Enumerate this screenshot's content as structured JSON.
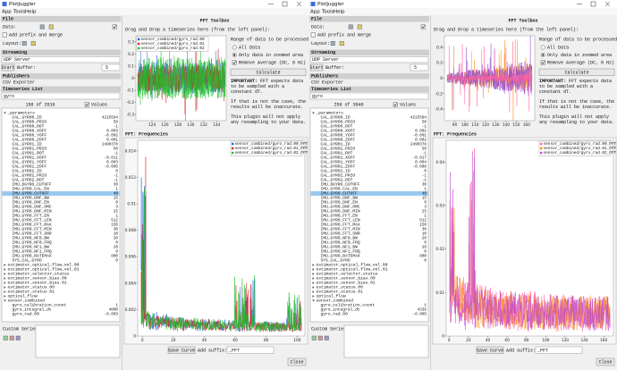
{
  "windows": [
    {
      "title": "PlotJuggler",
      "menu": [
        "App",
        "Tools",
        "Help"
      ],
      "left_panel": {
        "file_header": "File",
        "data_label": "Data:",
        "prefix_checkbox": {
          "label": "Add prefix and merge",
          "checked": false
        },
        "layout_label": "Layout:",
        "streaming_header": "Streaming",
        "streaming_source": "UDP Server",
        "start_button": "Start",
        "buffer_label": "Buffer:",
        "buffer_value": "5",
        "publishers_header": "Publishers",
        "publisher": "CSV Exporter",
        "timeseries_header": "Timeseries List",
        "search": "gyro",
        "count": "158 of 2016",
        "values_checkbox": {
          "label": "Values",
          "checked": true
        },
        "tree": [
          {
            "label": "_parameters",
            "expanded": true,
            "children": [
              {
                "label": "CAL_GYRO0_ID",
                "value": "4215594"
              },
              {
                "label": "CAL_GYRO0_PRIO",
                "value": "50"
              },
              {
                "label": "CAL_GYRO0_ROT",
                "value": "-1"
              },
              {
                "label": "CAL_GYRO0_XOFF",
                "value": "0.003"
              },
              {
                "label": "CAL_GYRO0_YOFF",
                "value": "-0.002"
              },
              {
                "label": "CAL_GYRO0_ZOFF",
                "value": "0.001"
              },
              {
                "label": "CAL_GYRO1_ID",
                "value": "2490378"
              },
              {
                "label": "CAL_GYRO1_PRIO",
                "value": "50"
              },
              {
                "label": "CAL_GYRO1_ROT",
                "value": "-1"
              },
              {
                "label": "CAL_GYRO1_XOFF",
                "value": "-0.011"
              },
              {
                "label": "CAL_GYRO1_YOFF",
                "value": "0.003"
              },
              {
                "label": "CAL_GYRO1_ZOFF",
                "value": "-0.005"
              },
              {
                "label": "CAL_GYRO2_ID",
                "value": "0"
              },
              {
                "label": "CAL_GYRO2_PRIO",
                "value": "-1"
              },
              {
                "label": "CAL_GYRO2_ROT",
                "value": "-1"
              },
              {
                "label": "IMU_DGYRO_CUTOFF",
                "value": "30"
              },
              {
                "label": "IMU_GYRO_CAL_EN",
                "value": "1"
              },
              {
                "label": "IMU_GYRO_CUTOFF",
                "value": "40",
                "selected": true
              },
              {
                "label": "IMU_GYRO_DNF_BW",
                "value": "15"
              },
              {
                "label": "IMU_GYRO_DNF_EN",
                "value": "0"
              },
              {
                "label": "IMU_GYRO_DNF_HMC",
                "value": "3"
              },
              {
                "label": "IMU_GYRO_DNF_MIN",
                "value": "25"
              },
              {
                "label": "IMU_GYRO_FFT_EN",
                "value": "1"
              },
              {
                "label": "IMU_GYRO_FFT_LEN",
                "value": "512"
              },
              {
                "label": "IMU_GYRO_FFT_MAX",
                "value": "150"
              },
              {
                "label": "IMU_GYRO_FFT_MIN",
                "value": "30"
              },
              {
                "label": "IMU_GYRO_FFT_SNR",
                "value": "10"
              },
              {
                "label": "IMU_GYRO_NF0_BW",
                "value": "20"
              },
              {
                "label": "IMU_GYRO_NF0_FRQ",
                "value": "0"
              },
              {
                "label": "IMU_GYRO_NF1_BW",
                "value": "20"
              },
              {
                "label": "IMU_GYRO_NF1_FRQ",
                "value": "0"
              },
              {
                "label": "IMU_GYRO_RATEMAX",
                "value": "800"
              },
              {
                "label": "SYS_CAL_GYRO",
                "value": "0"
              }
            ]
          },
          {
            "label": "estimator_optical_flow_vel.00",
            "expanded": false
          },
          {
            "label": "estimator_optical_flow_vel.01",
            "expanded": false
          },
          {
            "label": "estimator_selector_status",
            "expanded": false
          },
          {
            "label": "estimator_sensor_bias.00",
            "expanded": false
          },
          {
            "label": "estimator_sensor_bias.01",
            "expanded": false
          },
          {
            "label": "estimator_status.00",
            "expanded": false
          },
          {
            "label": "estimator_status.01",
            "expanded": false
          },
          {
            "label": "optical_flow",
            "expanded": false
          },
          {
            "label": "sensor_combined",
            "expanded": true,
            "children": [
              {
                "label": "gyro_calibration_count",
                "value": "1"
              },
              {
                "label": "gyro_integral_dt",
                "value": "4000"
              },
              {
                "label": "gyro_rad.00",
                "value": "-0.003"
              }
            ]
          }
        ],
        "custom_series_label": "Custom Series:"
      },
      "fft_toolbox": {
        "title": "FFT Toolbox",
        "drop_hint": "Drag and Drop a timeseries here (from the left panel):",
        "range_label": "Range of data to be processed:",
        "options": [
          {
            "label": "All Data",
            "kind": "radio",
            "checked": false
          },
          {
            "label": "Only data in zoomed area",
            "kind": "radio",
            "checked": true
          },
          {
            "label": "Remove Average (DC, 0 Hz)",
            "kind": "checkbox",
            "checked": true
          }
        ],
        "calculate_button": "Calculate",
        "notes": [
          {
            "strong": "IMPORTANT:",
            "text": "FFT expects data to be sampled with a constant dT."
          },
          {
            "text": "If that is not the case, the results will be inaccurate."
          },
          {
            "text": "This plugin will not apply any resampling to your data."
          }
        ],
        "signal_plot": {
          "xlim": [
            121.5,
            135.5
          ],
          "xticks": [
            124,
            126,
            128,
            130,
            132,
            134
          ],
          "ylim": [
            -0.35,
            0.35
          ],
          "yticks": [
            -0.3,
            -0.2,
            -0.1,
            0,
            0.1,
            0.2,
            0.3
          ],
          "series": [
            {
              "name": "sensor_combined/gyro_rad.00",
              "color": "#1f5fd6"
            },
            {
              "name": "sensor_combined/gyro_rad.01",
              "color": "#d62728"
            },
            {
              "name": "sensor_combined/gyro_rad.02",
              "color": "#1fbf2a"
            }
          ]
        },
        "fft_header": "FFT: Frequencies",
        "fft_plot": {
          "xlim": [
            -3,
            105
          ],
          "xticks": [
            0,
            20,
            40,
            60,
            80,
            100
          ],
          "ylim": [
            0,
            0.0148
          ],
          "yticks": [
            0,
            0.002,
            0.004,
            0.006,
            0.008,
            0.01,
            0.012,
            0.014
          ],
          "series": [
            {
              "name": "sensor_combined/gyro_rad.00_FFT",
              "color": "#1f5fd6"
            },
            {
              "name": "sensor_combined/gyro_rad.01_FFT",
              "color": "#d62728"
            },
            {
              "name": "sensor_combined/gyro_rad.02_FFT",
              "color": "#1fbf2a"
            }
          ]
        },
        "save_button": "Save Curve",
        "suffix_label": "Add suffix:",
        "suffix_value": "_FFT",
        "close_button": "Close"
      }
    },
    {
      "title": "PlotJuggler",
      "menu": [
        "App",
        "Tools",
        "Help"
      ],
      "left_panel": {
        "file_header": "File",
        "data_label": "Data:",
        "prefix_checkbox": {
          "label": "Add prefix and merge",
          "checked": false
        },
        "layout_label": "Layout:",
        "streaming_header": "Streaming",
        "streaming_source": "UDP Server",
        "start_button": "Start",
        "buffer_label": "Buffer:",
        "buffer_value": "5",
        "publishers_header": "Publishers",
        "publisher": "CSV Exporter",
        "timeseries_header": "Timeseries List",
        "search": "gyro",
        "count": "259 of 3040",
        "values_checkbox": {
          "label": "Values",
          "checked": true
        },
        "tree": [
          {
            "label": "_parameters",
            "expanded": true,
            "children": [
              {
                "label": "CAL_GYRO0_ID",
                "value": "4215594"
              },
              {
                "label": "CAL_GYRO0_PRIO",
                "value": "50"
              },
              {
                "label": "CAL_GYRO0_ROT",
                "value": "-1"
              },
              {
                "label": "CAL_GYRO0_XOFF",
                "value": "0.002"
              },
              {
                "label": "CAL_GYRO0_YOFF",
                "value": "-0.001"
              },
              {
                "label": "CAL_GYRO0_ZOFF",
                "value": "0.002"
              },
              {
                "label": "CAL_GYRO1_ID",
                "value": "2490378"
              },
              {
                "label": "CAL_GYRO1_PRIO",
                "value": "50"
              },
              {
                "label": "CAL_GYRO1_ROT",
                "value": "-1"
              },
              {
                "label": "CAL_GYRO1_XOFF",
                "value": "-0.017"
              },
              {
                "label": "CAL_GYRO1_YOFF",
                "value": "0.004"
              },
              {
                "label": "CAL_GYRO1_ZOFF",
                "value": "-0.006"
              },
              {
                "label": "CAL_GYRO2_ID",
                "value": "0"
              },
              {
                "label": "CAL_GYRO2_PRIO",
                "value": "-1"
              },
              {
                "label": "CAL_GYRO2_ROT",
                "value": "-1"
              },
              {
                "label": "IMU_DGYRO_CUTOFF",
                "value": "30"
              },
              {
                "label": "IMU_GYRO_CAL_EN",
                "value": "1"
              },
              {
                "label": "IMU_GYRO_CUTOFF",
                "value": "40",
                "selected": true
              },
              {
                "label": "IMU_GYRO_DNF_BW",
                "value": "15"
              },
              {
                "label": "IMU_GYRO_DNF_EN",
                "value": "0"
              },
              {
                "label": "IMU_GYRO_DNF_HMC",
                "value": "3"
              },
              {
                "label": "IMU_GYRO_DNF_MIN",
                "value": "25"
              },
              {
                "label": "IMU_GYRO_FFT_EN",
                "value": "1"
              },
              {
                "label": "IMU_GYRO_FFT_LEN",
                "value": "512"
              },
              {
                "label": "IMU_GYRO_FFT_MAX",
                "value": "150"
              },
              {
                "label": "IMU_GYRO_FFT_MIN",
                "value": "30"
              },
              {
                "label": "IMU_GYRO_FFT_SNR",
                "value": "10"
              },
              {
                "label": "IMU_GYRO_NF0_BW",
                "value": "20"
              },
              {
                "label": "IMU_GYRO_NF0_FRQ",
                "value": "0"
              },
              {
                "label": "IMU_GYRO_NF1_BW",
                "value": "20"
              },
              {
                "label": "IMU_GYRO_NF1_FRQ",
                "value": "0"
              },
              {
                "label": "IMU_GYRO_RATEMAX",
                "value": "800"
              },
              {
                "label": "SYS_CAL_GYRO",
                "value": "0"
              }
            ]
          },
          {
            "label": "estimator_optical_flow_vel.00",
            "expanded": false
          },
          {
            "label": "estimator_optical_flow_vel.01",
            "expanded": false
          },
          {
            "label": "estimator_selector_status",
            "expanded": false
          },
          {
            "label": "estimator_sensor_bias.00",
            "expanded": false
          },
          {
            "label": "estimator_sensor_bias.01",
            "expanded": false
          },
          {
            "label": "estimator_status.00",
            "expanded": false
          },
          {
            "label": "estimator_status.01",
            "expanded": false
          },
          {
            "label": "optical_flow",
            "expanded": false
          },
          {
            "label": "sensor_combined",
            "expanded": true,
            "children": [
              {
                "label": "gyro_calibration_count",
                "value": "1"
              },
              {
                "label": "gyro_integral_dt",
                "value": "4336"
              },
              {
                "label": "gyro_rad.00",
                "value": "-0.005"
              }
            ]
          }
        ],
        "custom_series_label": "Custom Series:"
      },
      "fft_toolbox": {
        "title": "FFT Toolbox",
        "drop_hint": "Drag and Drop a timeseries here (from the left panel):",
        "range_label": "Range of data to be processed:",
        "options": [
          {
            "label": "All Data",
            "kind": "radio",
            "checked": false
          },
          {
            "label": "Only data in zoomed area",
            "kind": "radio",
            "checked": true
          },
          {
            "label": "Remove Average (DC, 0 Hz)",
            "kind": "checkbox",
            "checked": true
          }
        ],
        "calculate_button": "Calculate",
        "notes": [
          {
            "strong": "IMPORTANT:",
            "text": "FFT expects data to be sampled with a constant dT."
          },
          {
            "text": "If that is not the case, the results will be inaccurate."
          },
          {
            "text": "This plugin will not apply any resampling to your data."
          }
        ],
        "signal_plot": {
          "xlim": [
            80,
            168
          ],
          "xticks": [
            90,
            100,
            110,
            120,
            130,
            140,
            150,
            160
          ],
          "ylim": [
            -0.55,
            0.55
          ],
          "yticks": [
            -0.4,
            -0.2,
            0,
            0.2,
            0.4
          ],
          "series": [
            {
              "color": "#ff8c1a"
            },
            {
              "color": "#9b4fd1"
            },
            {
              "color": "#ff5fa0"
            }
          ]
        },
        "fft_header": "FFT: Frequencies",
        "fft_plot": {
          "xlim": [
            -3,
            170
          ],
          "xticks": [
            0,
            20,
            40,
            60,
            80,
            100,
            120,
            140,
            160
          ],
          "ylim": [
            0,
            0.045
          ],
          "yticks": [
            0,
            0.01,
            0.02,
            0.03,
            0.04
          ],
          "series": [
            {
              "name": "sensor_combined/gyro_rad.00_FFT",
              "color": "#ff5fa0"
            },
            {
              "name": "sensor_combined/gyro_rad.01_FFT",
              "color": "#ff8c1a"
            },
            {
              "name": "sensor_combined/gyro_rad.02_FFT",
              "color": "#c04fd1"
            }
          ]
        },
        "save_button": "Save Curve",
        "suffix_label": "Add suffix:",
        "suffix_value": "_FFT",
        "close_button": "Close"
      }
    }
  ]
}
